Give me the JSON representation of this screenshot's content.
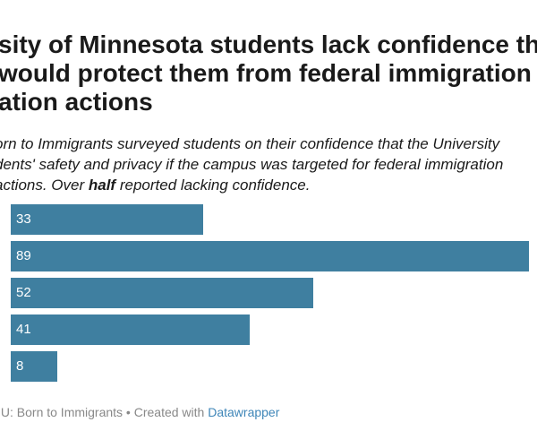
{
  "title_lines": [
    "sity of Minnesota students lack confidence tha",
    "would protect them from federal immigration",
    "ation actions"
  ],
  "subtitle": {
    "line1": "orn to Immigrants surveyed students on their confidence that the University",
    "line2": "dents' safety and privacy if the campus was targeted for federal immigration",
    "line3_pre": " actions. Over ",
    "line3_bold": "half",
    "line3_post": " reported lacking confidence."
  },
  "footer": {
    "source": "s U: Born to Immigrants • Created with ",
    "tool": "Datawrapper"
  },
  "colors": {
    "bar": "#3f7fa0",
    "footer_link": "#3f86b8"
  },
  "chart_data": {
    "type": "bar",
    "orientation": "horizontal",
    "values": [
      33,
      89,
      52,
      41,
      8
    ]
  }
}
